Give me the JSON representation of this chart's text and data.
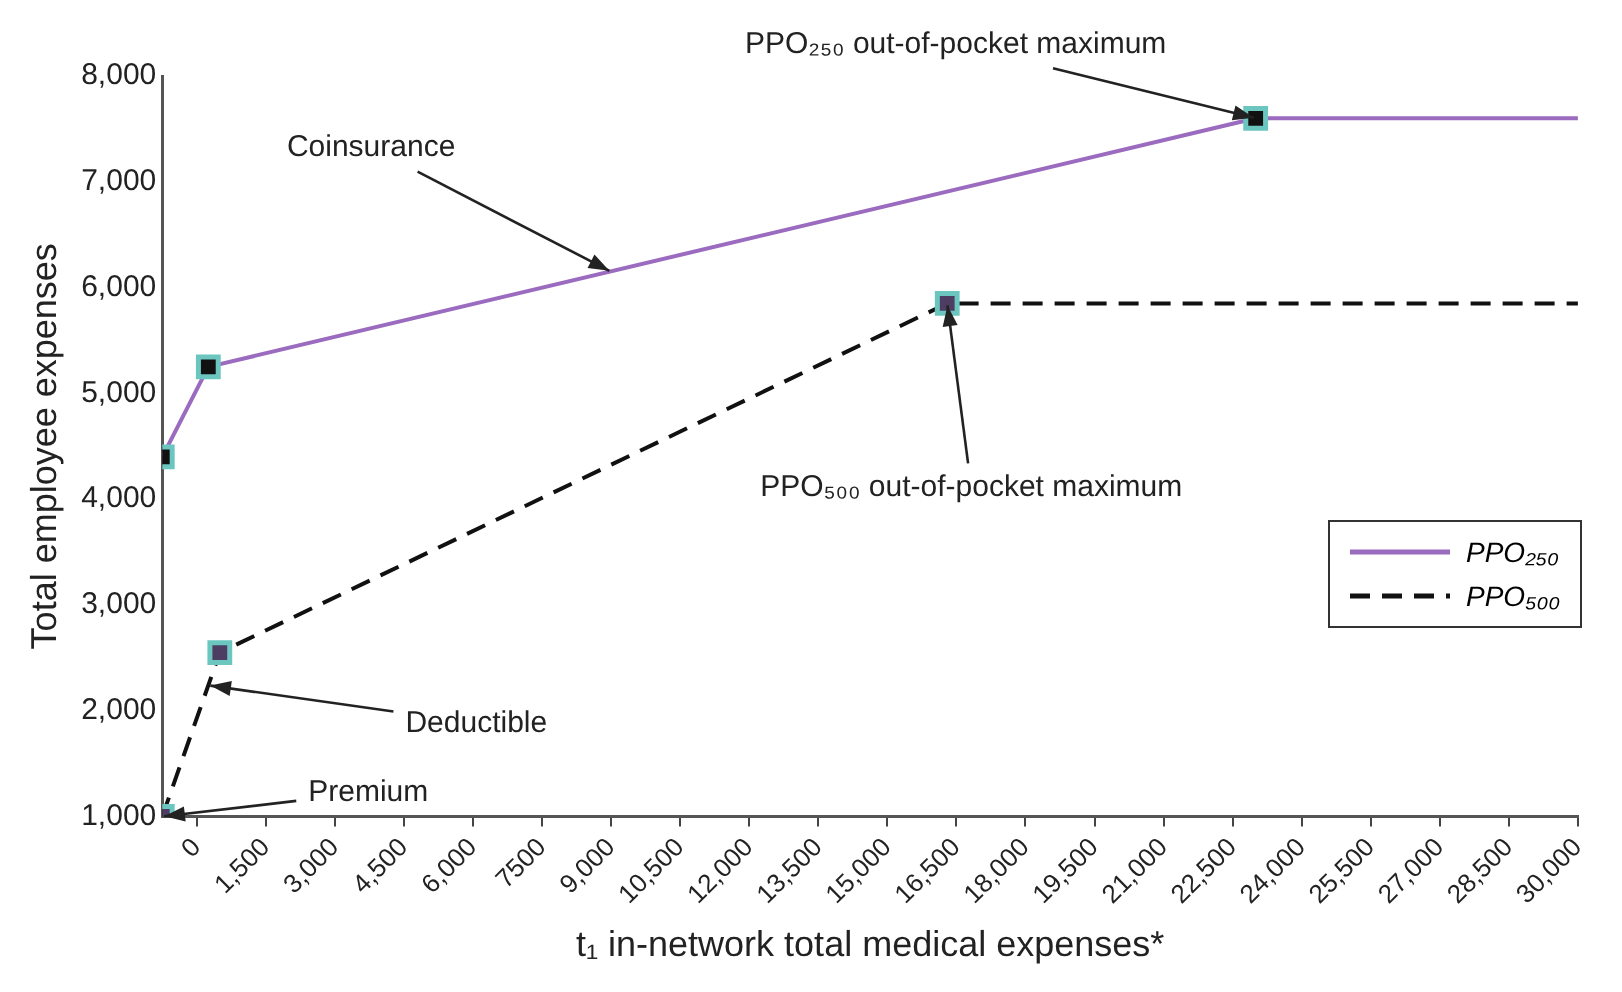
{
  "chart_data": {
    "type": "line",
    "xlabel": "t₁ in-network total medical expenses*",
    "ylabel": "Total employee expenses",
    "xlim": [
      -750,
      30000
    ],
    "xticks": [
      0,
      {
        "value": 1500,
        "label": "1,500"
      },
      {
        "value": 3000,
        "label": "3,000"
      },
      {
        "value": 4500,
        "label": "4,500"
      },
      {
        "value": 6000,
        "label": "6,000"
      },
      7500,
      {
        "value": 9000,
        "label": "9,000"
      },
      {
        "value": 10500,
        "label": "10,500"
      },
      {
        "value": 12000,
        "label": "12,000"
      },
      {
        "value": 13500,
        "label": "13,500"
      },
      {
        "value": 15000,
        "label": "15,000"
      },
      {
        "value": 16500,
        "label": "16,500"
      },
      {
        "value": 18000,
        "label": "18,000"
      },
      {
        "value": 19500,
        "label": "19,500"
      },
      {
        "value": 21000,
        "label": "21,000"
      },
      {
        "value": 22500,
        "label": "22,500"
      },
      {
        "value": 24000,
        "label": "24,000"
      },
      {
        "value": 25500,
        "label": "25,500"
      },
      {
        "value": 27000,
        "label": "27,000"
      },
      {
        "value": 28500,
        "label": "28,500"
      },
      {
        "value": 30000,
        "label": "30,000"
      }
    ],
    "ylim": [
      1000,
      8000
    ],
    "yticks": [
      {
        "value": 1000,
        "label": "1,000"
      },
      {
        "value": 2000,
        "label": "2,000"
      },
      {
        "value": 3000,
        "label": "3,000"
      },
      {
        "value": 4000,
        "label": "4,000"
      },
      {
        "value": 5000,
        "label": "5,000"
      },
      {
        "value": 6000,
        "label": "6,000"
      },
      {
        "value": 7000,
        "label": "7,000"
      },
      {
        "value": 8000,
        "label": "8,000"
      }
    ],
    "series": [
      {
        "name": "PPO₂₅₀",
        "color": "#9b6bbf",
        "line_style": "solid",
        "x": [
          -750,
          250,
          23000,
          30000
        ],
        "values": [
          4400,
          5250,
          7600,
          7600
        ]
      },
      {
        "name": "PPO₅₀₀",
        "color": "#111111",
        "line_style": "dashed",
        "x": [
          -750,
          500,
          16300,
          30000
        ],
        "values": [
          1000,
          2550,
          5850,
          5850
        ]
      }
    ],
    "marker": "square",
    "legend": "right",
    "annotations": [
      {
        "text": "PPO₂₅₀ out-of-pocket maximum",
        "x": 23000,
        "y": 7600
      },
      {
        "text": "Coinsurance",
        "x": 9000,
        "y": 6150
      },
      {
        "text": "PPO₅₀₀ out-of-pocket maximum",
        "x": 16300,
        "y": 5850
      },
      {
        "text": "Deductible",
        "x": 250,
        "y": 2240
      },
      {
        "text": "Premium",
        "x": -750,
        "y": 1000
      }
    ]
  }
}
